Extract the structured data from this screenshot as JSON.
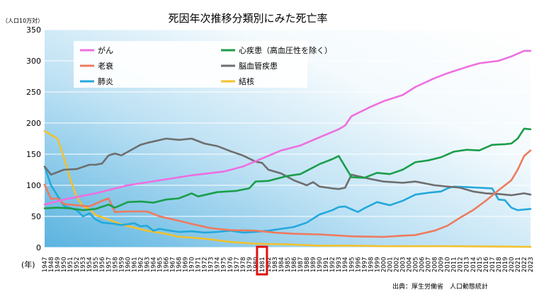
{
  "chart_data": {
    "type": "line",
    "title": "死因年次推移分類別にみた死亡率",
    "ylabel": "（人口10万対）",
    "xlabel": "(年)",
    "source": "出典：厚生労働省　人口動態統計",
    "ylim": [
      0,
      350
    ],
    "yticks": [
      0,
      50,
      100,
      150,
      200,
      250,
      300,
      350
    ],
    "x_start": 1947,
    "x_end": 2023,
    "highlight_year": 1981,
    "legend_position": "top-left (inside plot)",
    "grid": "horizontal",
    "series": [
      {
        "name": "がん",
        "color": "#ee6ee0",
        "points": [
          [
            1947,
            69
          ],
          [
            1950,
            77
          ],
          [
            1955,
            87
          ],
          [
            1960,
            100
          ],
          [
            1965,
            108
          ],
          [
            1970,
            116
          ],
          [
            1975,
            122
          ],
          [
            1978,
            130
          ],
          [
            1981,
            143
          ],
          [
            1984,
            156
          ],
          [
            1987,
            164
          ],
          [
            1990,
            177
          ],
          [
            1993,
            190
          ],
          [
            1994,
            196
          ],
          [
            1995,
            211
          ],
          [
            1998,
            226
          ],
          [
            2000,
            235
          ],
          [
            2003,
            245
          ],
          [
            2005,
            258
          ],
          [
            2008,
            272
          ],
          [
            2010,
            280
          ],
          [
            2013,
            290
          ],
          [
            2015,
            296
          ],
          [
            2018,
            300
          ],
          [
            2020,
            307
          ],
          [
            2022,
            316
          ],
          [
            2023,
            316
          ]
        ]
      },
      {
        "name": "心疾患（高血圧性を除く）",
        "color": "#1a9e4a",
        "points": [
          [
            1947,
            63
          ],
          [
            1949,
            64
          ],
          [
            1951,
            63
          ],
          [
            1953,
            60
          ],
          [
            1955,
            62
          ],
          [
            1957,
            69
          ],
          [
            1958,
            64
          ],
          [
            1960,
            73
          ],
          [
            1962,
            74
          ],
          [
            1964,
            72
          ],
          [
            1966,
            77
          ],
          [
            1968,
            79
          ],
          [
            1970,
            87
          ],
          [
            1971,
            82
          ],
          [
            1974,
            89
          ],
          [
            1977,
            91
          ],
          [
            1979,
            95
          ],
          [
            1980,
            106
          ],
          [
            1982,
            107
          ],
          [
            1985,
            115
          ],
          [
            1987,
            118
          ],
          [
            1990,
            134
          ],
          [
            1992,
            142
          ],
          [
            1993,
            147
          ],
          [
            1995,
            113
          ],
          [
            1997,
            112
          ],
          [
            1999,
            120
          ],
          [
            2001,
            118
          ],
          [
            2003,
            125
          ],
          [
            2005,
            137
          ],
          [
            2007,
            140
          ],
          [
            2009,
            145
          ],
          [
            2011,
            154
          ],
          [
            2013,
            157
          ],
          [
            2015,
            156
          ],
          [
            2017,
            165
          ],
          [
            2019,
            166
          ],
          [
            2020,
            167
          ],
          [
            2021,
            175
          ],
          [
            2022,
            191
          ],
          [
            2023,
            190
          ]
        ]
      },
      {
        "name": "老衰",
        "color": "#ee7a5e",
        "points": [
          [
            1947,
            101
          ],
          [
            1948,
            78
          ],
          [
            1949,
            79
          ],
          [
            1950,
            70
          ],
          [
            1952,
            68
          ],
          [
            1954,
            66
          ],
          [
            1956,
            75
          ],
          [
            1957,
            79
          ],
          [
            1958,
            57
          ],
          [
            1960,
            58
          ],
          [
            1963,
            58
          ],
          [
            1965,
            50
          ],
          [
            1968,
            43
          ],
          [
            1970,
            38
          ],
          [
            1973,
            31
          ],
          [
            1976,
            28
          ],
          [
            1980,
            27
          ],
          [
            1983,
            24
          ],
          [
            1986,
            22
          ],
          [
            1990,
            21
          ],
          [
            1995,
            18
          ],
          [
            2000,
            17
          ],
          [
            2003,
            19
          ],
          [
            2005,
            20
          ],
          [
            2008,
            27
          ],
          [
            2010,
            35
          ],
          [
            2012,
            48
          ],
          [
            2014,
            60
          ],
          [
            2016,
            75
          ],
          [
            2018,
            92
          ],
          [
            2020,
            108
          ],
          [
            2021,
            125
          ],
          [
            2022,
            147
          ],
          [
            2023,
            156
          ]
        ]
      },
      {
        "name": "脳血管疾患",
        "color": "#6e6e6e",
        "points": [
          [
            1947,
            130
          ],
          [
            1948,
            117
          ],
          [
            1950,
            125
          ],
          [
            1952,
            126
          ],
          [
            1954,
            133
          ],
          [
            1955,
            133
          ],
          [
            1956,
            135
          ],
          [
            1957,
            148
          ],
          [
            1958,
            151
          ],
          [
            1959,
            148
          ],
          [
            1962,
            165
          ],
          [
            1963,
            168
          ],
          [
            1966,
            175
          ],
          [
            1968,
            173
          ],
          [
            1970,
            175
          ],
          [
            1972,
            167
          ],
          [
            1974,
            163
          ],
          [
            1976,
            155
          ],
          [
            1978,
            148
          ],
          [
            1980,
            138
          ],
          [
            1981,
            136
          ],
          [
            1982,
            125
          ],
          [
            1984,
            119
          ],
          [
            1986,
            108
          ],
          [
            1988,
            100
          ],
          [
            1989,
            105
          ],
          [
            1990,
            98
          ],
          [
            1992,
            95
          ],
          [
            1993,
            94
          ],
          [
            1994,
            96
          ],
          [
            1995,
            117
          ],
          [
            1998,
            110
          ],
          [
            2000,
            106
          ],
          [
            2003,
            104
          ],
          [
            2005,
            106
          ],
          [
            2008,
            100
          ],
          [
            2010,
            98
          ],
          [
            2012,
            96
          ],
          [
            2014,
            90
          ],
          [
            2016,
            87
          ],
          [
            2018,
            86
          ],
          [
            2020,
            84
          ],
          [
            2022,
            87
          ],
          [
            2023,
            85
          ]
        ]
      },
      {
        "name": "肺炎",
        "color": "#23a8dc",
        "points": [
          [
            1947,
            130
          ],
          [
            1948,
            100
          ],
          [
            1950,
            67
          ],
          [
            1952,
            60
          ],
          [
            1953,
            50
          ],
          [
            1954,
            55
          ],
          [
            1955,
            45
          ],
          [
            1956,
            40
          ],
          [
            1958,
            38
          ],
          [
            1959,
            36
          ],
          [
            1961,
            39
          ],
          [
            1962,
            34
          ],
          [
            1963,
            35
          ],
          [
            1964,
            27
          ],
          [
            1965,
            30
          ],
          [
            1966,
            28
          ],
          [
            1968,
            25
          ],
          [
            1970,
            26
          ],
          [
            1972,
            24
          ],
          [
            1974,
            25
          ],
          [
            1976,
            27
          ],
          [
            1978,
            24
          ],
          [
            1980,
            25
          ],
          [
            1982,
            27
          ],
          [
            1984,
            30
          ],
          [
            1986,
            33
          ],
          [
            1988,
            40
          ],
          [
            1990,
            53
          ],
          [
            1992,
            60
          ],
          [
            1993,
            65
          ],
          [
            1994,
            66
          ],
          [
            1996,
            57
          ],
          [
            1997,
            63
          ],
          [
            1999,
            73
          ],
          [
            2001,
            68
          ],
          [
            2003,
            75
          ],
          [
            2005,
            85
          ],
          [
            2007,
            88
          ],
          [
            2009,
            90
          ],
          [
            2010,
            95
          ],
          [
            2011,
            98
          ],
          [
            2013,
            97
          ],
          [
            2015,
            96
          ],
          [
            2017,
            95
          ],
          [
            2018,
            77
          ],
          [
            2019,
            76
          ],
          [
            2020,
            64
          ],
          [
            2021,
            60
          ],
          [
            2023,
            62
          ]
        ]
      },
      {
        "name": "結核",
        "color": "#f2c12e",
        "points": [
          [
            1947,
            187
          ],
          [
            1949,
            175
          ],
          [
            1950,
            145
          ],
          [
            1951,
            110
          ],
          [
            1952,
            82
          ],
          [
            1953,
            66
          ],
          [
            1954,
            62
          ],
          [
            1955,
            52
          ],
          [
            1957,
            45
          ],
          [
            1959,
            37
          ],
          [
            1961,
            32
          ],
          [
            1963,
            27
          ],
          [
            1966,
            22
          ],
          [
            1968,
            17
          ],
          [
            1970,
            16
          ],
          [
            1973,
            13
          ],
          [
            1976,
            9
          ],
          [
            1980,
            6
          ],
          [
            1985,
            5
          ],
          [
            1990,
            3
          ],
          [
            1995,
            3
          ],
          [
            2000,
            2
          ],
          [
            2010,
            2
          ],
          [
            2023,
            1
          ]
        ]
      }
    ]
  }
}
